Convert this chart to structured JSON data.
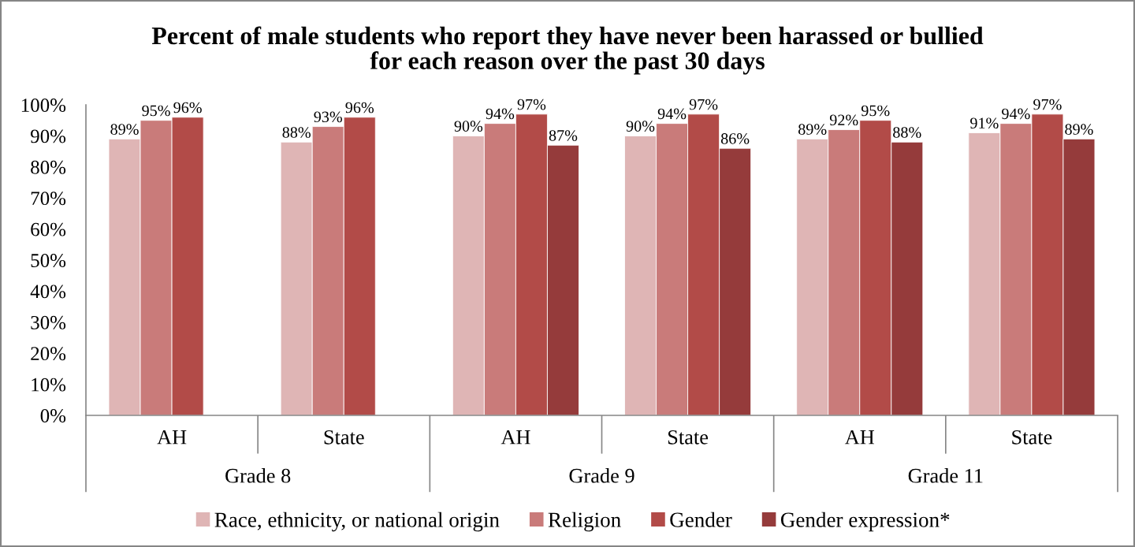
{
  "chart_data": {
    "type": "bar",
    "title": "Percent of male students who report they have never been harassed or bullied\nfor each reason over the past 30 days",
    "categories": [
      "AH",
      "State",
      "AH",
      "State",
      "AH",
      "State"
    ],
    "annotations": [
      "Grade 8",
      "Grade 9",
      "Grade 11"
    ],
    "series": [
      {
        "name": "Race, ethnicity, or national origin",
        "color": "#dfb5b5",
        "values": [
          89,
          88,
          90,
          90,
          89,
          91
        ],
        "value_labels": [
          "89%",
          "88%",
          "90%",
          "90%",
          "89%",
          "91%"
        ]
      },
      {
        "name": "Religion",
        "color": "#c97b7a",
        "values": [
          95,
          93,
          94,
          94,
          92,
          94
        ],
        "value_labels": [
          "95%",
          "93%",
          "94%",
          "94%",
          "92%",
          "94%"
        ]
      },
      {
        "name": "Gender",
        "color": "#b24b48",
        "values": [
          96,
          96,
          97,
          97,
          95,
          97
        ],
        "value_labels": [
          "96%",
          "96%",
          "97%",
          "97%",
          "95%",
          "97%"
        ]
      },
      {
        "name": "Gender expression*",
        "color": "#953b3b",
        "values": [
          null,
          null,
          87,
          86,
          88,
          89
        ],
        "value_labels": [
          null,
          null,
          "87%",
          "86%",
          "88%",
          "89%"
        ]
      }
    ],
    "ylim": [
      0,
      100
    ],
    "yticks": [
      {
        "value": 0,
        "label": "0%"
      },
      {
        "value": 10,
        "label": "10%"
      },
      {
        "value": 20,
        "label": "20%"
      },
      {
        "value": 30,
        "label": "30%"
      },
      {
        "value": 40,
        "label": "40%"
      },
      {
        "value": 50,
        "label": "50%"
      },
      {
        "value": 60,
        "label": "60%"
      },
      {
        "value": 70,
        "label": "70%"
      },
      {
        "value": 80,
        "label": "80%"
      },
      {
        "value": 90,
        "label": "90%"
      },
      {
        "value": 100,
        "label": "100%"
      }
    ],
    "legend": "bottom"
  }
}
